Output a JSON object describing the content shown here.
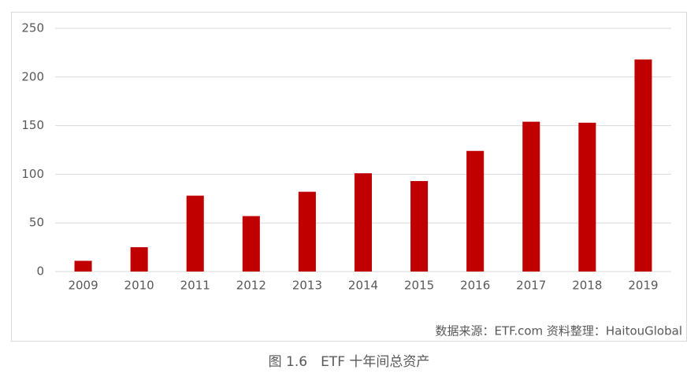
{
  "chart_data": {
    "type": "bar",
    "categories": [
      "2009",
      "2010",
      "2011",
      "2012",
      "2013",
      "2014",
      "2015",
      "2016",
      "2017",
      "2018",
      "2019"
    ],
    "values": [
      11,
      25,
      78,
      57,
      82,
      101,
      93,
      124,
      154,
      153,
      218
    ],
    "color": "#c00000",
    "ylim": [
      0,
      250
    ],
    "yticks": [
      0,
      50,
      100,
      150,
      200,
      250
    ],
    "grid": true,
    "source": "数据来源：ETF.com 资料整理：HaitouGlobal",
    "caption": "图 1.6　ETF 十年间总资产"
  }
}
